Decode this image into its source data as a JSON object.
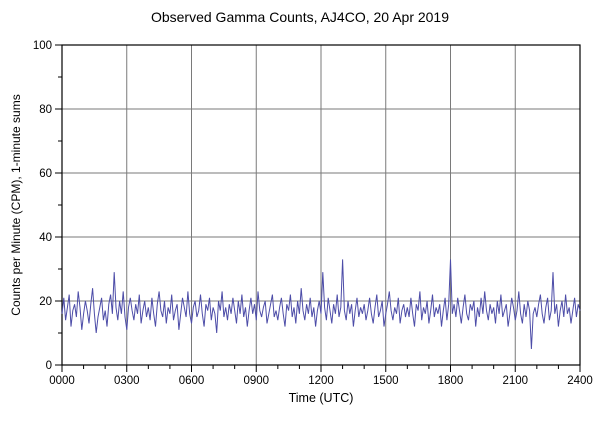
{
  "chart_data": {
    "type": "line",
    "title": "Observed Gamma Counts, AJ4CO, 20 Apr 2019",
    "xlabel": "Time (UTC)",
    "ylabel": "Counts per Minute (CPM), 1-minute sums",
    "x_tick_labels": [
      "0000",
      "0300",
      "0600",
      "0900",
      "1200",
      "1500",
      "1800",
      "2100",
      "2400"
    ],
    "x_tick_minutes": [
      0,
      180,
      360,
      540,
      720,
      900,
      1080,
      1260,
      1440
    ],
    "x_minor_step_minutes": 60,
    "xlim_minutes": [
      0,
      1440
    ],
    "y_ticks": [
      0,
      20,
      40,
      60,
      80,
      100
    ],
    "y_minor_step": 10,
    "ylim": [
      0,
      100
    ],
    "grid": true,
    "line_color": "#4d4da8",
    "grid_color": "#7a7a7a",
    "axis_color": "#000000",
    "x_step_minutes": 5,
    "values": [
      16,
      21,
      14,
      18,
      22,
      12,
      17,
      19,
      15,
      23,
      18,
      11,
      16,
      20,
      17,
      13,
      19,
      24,
      16,
      10,
      15,
      18,
      21,
      14,
      17,
      12,
      19,
      22,
      16,
      29,
      18,
      14,
      20,
      16,
      23,
      15,
      11,
      18,
      21,
      17,
      14,
      19,
      16,
      22,
      13,
      17,
      20,
      15,
      18,
      14,
      21,
      16,
      12,
      19,
      23,
      17,
      15,
      20,
      13,
      18,
      16,
      22,
      14,
      17,
      19,
      11,
      16,
      21,
      18,
      15,
      23,
      16,
      13,
      18,
      20,
      15,
      17,
      22,
      16,
      12,
      19,
      17,
      21,
      14,
      18,
      16,
      10,
      20,
      17,
      23,
      15,
      18,
      14,
      19,
      16,
      21,
      17,
      13,
      20,
      16,
      22,
      15,
      18,
      12,
      17,
      21,
      16,
      19,
      14,
      23,
      17,
      15,
      18,
      20,
      13,
      16,
      19,
      22,
      15,
      17,
      14,
      18,
      21,
      16,
      12,
      19,
      17,
      22,
      15,
      18,
      13,
      20,
      16,
      24,
      17,
      14,
      19,
      16,
      21,
      15,
      18,
      12,
      17,
      20,
      16,
      29,
      18,
      14,
      21,
      17,
      13,
      19,
      16,
      22,
      15,
      18,
      33,
      17,
      14,
      20,
      16,
      19,
      12,
      17,
      21,
      15,
      18,
      16,
      19,
      14,
      17,
      21,
      16,
      13,
      18,
      22,
      15,
      17,
      20,
      12,
      16,
      19,
      23,
      17,
      14,
      18,
      16,
      21,
      13,
      17,
      19,
      15,
      18,
      15,
      21,
      16,
      12,
      19,
      17,
      23,
      14,
      18,
      16,
      20,
      13,
      17,
      22,
      15,
      18,
      16,
      19,
      12,
      17,
      21,
      14,
      19,
      33,
      16,
      19,
      15,
      21,
      17,
      13,
      18,
      22,
      16,
      14,
      19,
      17,
      20,
      12,
      18,
      15,
      21,
      16,
      23,
      17,
      14,
      19,
      16,
      18,
      13,
      20,
      16,
      22,
      15,
      17,
      19,
      12,
      16,
      21,
      18,
      14,
      17,
      23,
      16,
      13,
      19,
      15,
      20,
      17,
      5,
      16,
      18,
      15,
      19,
      22,
      16,
      13,
      18,
      21,
      14,
      17,
      29,
      16,
      19,
      12,
      17,
      20,
      15,
      22,
      16,
      18,
      13,
      17,
      21,
      15,
      19,
      17
    ]
  }
}
